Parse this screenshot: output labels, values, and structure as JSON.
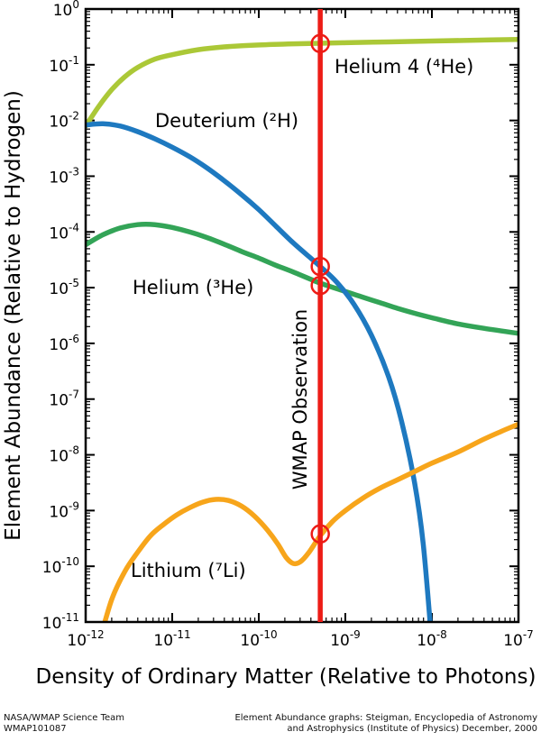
{
  "chart_data": {
    "type": "line",
    "title": "",
    "x_axis": {
      "label": "Density of Ordinary Matter (Relative to Photons)",
      "scale": "log",
      "tick_base": "10",
      "min_exponent": -12,
      "max_exponent": -7,
      "tick_exponents": [
        -12,
        -11,
        -10,
        -9,
        -8,
        -7
      ]
    },
    "y_axis": {
      "label": "Element Abundance (Relative to Hydrogen)",
      "scale": "log",
      "tick_base": "10",
      "min_exponent": -11,
      "max_exponent": 0,
      "tick_exponents": [
        0,
        -1,
        -2,
        -3,
        -4,
        -5,
        -6,
        -7,
        -8,
        -9,
        -10,
        -11
      ]
    },
    "grid": false,
    "draw_order": [
      "helium3",
      "helium4",
      "deuterium",
      "lithium"
    ],
    "series": [
      {
        "id": "helium4",
        "label": "Helium 4 (⁴He)",
        "color": "#abc837",
        "points_log10": [
          [
            -12,
            -2.1
          ],
          [
            -11.85,
            -1.75
          ],
          [
            -11.7,
            -1.45
          ],
          [
            -11.55,
            -1.22
          ],
          [
            -11.4,
            -1.05
          ],
          [
            -11.2,
            -0.9
          ],
          [
            -11,
            -0.82
          ],
          [
            -10.7,
            -0.73
          ],
          [
            -10.4,
            -0.68
          ],
          [
            -10,
            -0.645
          ],
          [
            -9.6,
            -0.625
          ],
          [
            -9.29,
            -0.615
          ],
          [
            -9,
            -0.605
          ],
          [
            -8.5,
            -0.59
          ],
          [
            -8,
            -0.575
          ],
          [
            -7.5,
            -0.56
          ],
          [
            -7,
            -0.545
          ]
        ]
      },
      {
        "id": "deuterium",
        "label": "Deuterium (²H)",
        "color": "#1e79c0",
        "points_log10": [
          [
            -12,
            -2.08
          ],
          [
            -11.8,
            -2.06
          ],
          [
            -11.6,
            -2.1
          ],
          [
            -11.4,
            -2.2
          ],
          [
            -11.2,
            -2.33
          ],
          [
            -11,
            -2.48
          ],
          [
            -10.8,
            -2.65
          ],
          [
            -10.6,
            -2.85
          ],
          [
            -10.4,
            -3.08
          ],
          [
            -10.2,
            -3.33
          ],
          [
            -10,
            -3.6
          ],
          [
            -9.8,
            -3.9
          ],
          [
            -9.6,
            -4.2
          ],
          [
            -9.4,
            -4.47
          ],
          [
            -9.29,
            -4.62
          ],
          [
            -9.1,
            -4.9
          ],
          [
            -8.9,
            -5.3
          ],
          [
            -8.7,
            -5.85
          ],
          [
            -8.5,
            -6.6
          ],
          [
            -8.35,
            -7.4
          ],
          [
            -8.2,
            -8.5
          ],
          [
            -8.1,
            -9.6
          ],
          [
            -8,
            -11.4
          ]
        ]
      },
      {
        "id": "helium3",
        "label": "Helium (³He)",
        "color": "#33a457",
        "points_log10": [
          [
            -12,
            -4.23
          ],
          [
            -11.8,
            -4.05
          ],
          [
            -11.6,
            -3.93
          ],
          [
            -11.4,
            -3.87
          ],
          [
            -11.2,
            -3.87
          ],
          [
            -11,
            -3.92
          ],
          [
            -10.8,
            -4
          ],
          [
            -10.6,
            -4.1
          ],
          [
            -10.4,
            -4.22
          ],
          [
            -10.2,
            -4.35
          ],
          [
            -10,
            -4.47
          ],
          [
            -9.8,
            -4.6
          ],
          [
            -9.6,
            -4.72
          ],
          [
            -9.4,
            -4.85
          ],
          [
            -9.29,
            -4.92
          ],
          [
            -9,
            -5.07
          ],
          [
            -8.8,
            -5.17
          ],
          [
            -8.6,
            -5.27
          ],
          [
            -8.4,
            -5.37
          ],
          [
            -8.2,
            -5.46
          ],
          [
            -8,
            -5.54
          ],
          [
            -7.7,
            -5.65
          ],
          [
            -7.4,
            -5.73
          ],
          [
            -7,
            -5.82
          ]
        ]
      },
      {
        "id": "lithium",
        "label": "Lithium (⁷Li)",
        "color": "#f7a51b",
        "points_log10": [
          [
            -11.85,
            -11.4
          ],
          [
            -11.7,
            -10.6
          ],
          [
            -11.55,
            -10.1
          ],
          [
            -11.4,
            -9.75
          ],
          [
            -11.25,
            -9.45
          ],
          [
            -11.1,
            -9.25
          ],
          [
            -10.95,
            -9.08
          ],
          [
            -10.8,
            -8.95
          ],
          [
            -10.65,
            -8.85
          ],
          [
            -10.5,
            -8.8
          ],
          [
            -10.35,
            -8.82
          ],
          [
            -10.2,
            -8.92
          ],
          [
            -10.05,
            -9.1
          ],
          [
            -9.9,
            -9.35
          ],
          [
            -9.78,
            -9.6
          ],
          [
            -9.68,
            -9.85
          ],
          [
            -9.6,
            -9.95
          ],
          [
            -9.52,
            -9.92
          ],
          [
            -9.42,
            -9.75
          ],
          [
            -9.29,
            -9.45
          ],
          [
            -9.15,
            -9.2
          ],
          [
            -9,
            -9
          ],
          [
            -8.8,
            -8.78
          ],
          [
            -8.6,
            -8.6
          ],
          [
            -8.4,
            -8.45
          ],
          [
            -8.2,
            -8.3
          ],
          [
            -8,
            -8.15
          ],
          [
            -7.7,
            -7.95
          ],
          [
            -7.4,
            -7.72
          ],
          [
            -7.2,
            -7.58
          ],
          [
            -7,
            -7.45
          ]
        ]
      }
    ],
    "wmap_line": {
      "label": "WMAP Observation",
      "x_log10": -9.29,
      "color": "#ed1c16"
    },
    "observation_circles": {
      "color": "#ed1c16",
      "points_log10": [
        [
          -9.29,
          -0.62
        ],
        [
          -9.29,
          -4.62
        ],
        [
          -9.29,
          -4.96
        ],
        [
          -9.29,
          -9.42
        ]
      ]
    }
  },
  "footer": {
    "left_line1": "NASA/WMAP Science Team",
    "left_line2": "WMAP101087",
    "right_line1": "Element Abundance graphs: Steigman, Encyclopedia of Astronomy",
    "right_line2": "and Astrophysics (Institute of Physics) December, 2000"
  },
  "colors": {
    "axis_title_red": "#ed1c16",
    "curve_helium4": "#abc837",
    "curve_deuterium": "#1e79c0",
    "curve_helium3": "#33a457",
    "curve_lithium": "#f7a51b",
    "frame_black": "#000000"
  }
}
